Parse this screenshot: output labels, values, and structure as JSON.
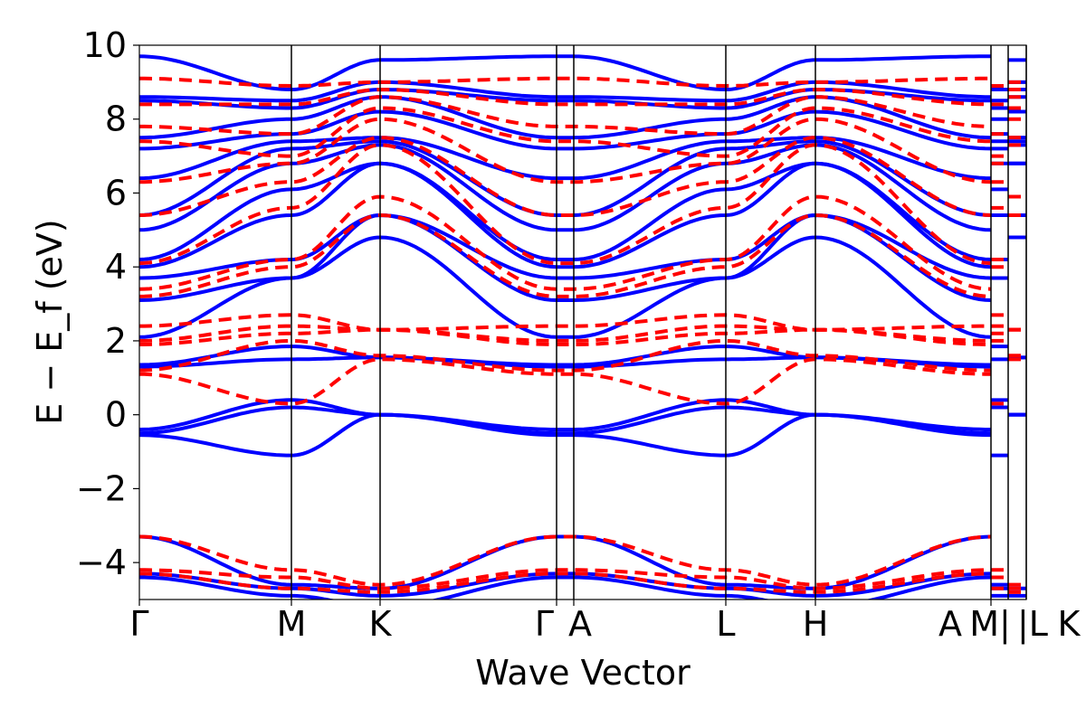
{
  "chart_data": {
    "type": "line",
    "title": "",
    "xlabel": "Wave Vector",
    "ylabel": "E − E_f (eV)",
    "ylabel_main": "E − E",
    "ylabel_sub": "f",
    "ylabel_unit": " (eV)",
    "ylim": [
      -5,
      10
    ],
    "yticks": [
      10,
      8,
      6,
      4,
      2,
      0,
      -2,
      -4
    ],
    "ytick_labels": [
      "10",
      "8",
      "6",
      "4",
      "2",
      "0",
      "−2",
      "−4"
    ],
    "xlim": [
      0,
      4.9
    ],
    "kpoints": [
      {
        "label": "Γ",
        "x": 0
      },
      {
        "label": "M",
        "x": 0.84
      },
      {
        "label": "K",
        "x": 1.33
      },
      {
        "label": "Γ",
        "x": 2.305
      },
      {
        "label": "A",
        "x": 2.4
      },
      {
        "label": "L",
        "x": 3.24
      },
      {
        "label": "H",
        "x": 3.735
      },
      {
        "label": "A",
        "x": 4.705
      },
      {
        "label": "M|",
        "x": 4.78
      },
      {
        "label": "|L",
        "x": 4.84
      },
      {
        "label": "K",
        "x": 4.93
      }
    ],
    "divider_x": [
      0.84,
      1.33,
      2.305,
      2.4,
      3.24,
      3.735,
      4.705,
      4.8,
      4.9
    ],
    "band_values_at": [
      "Γ",
      "M",
      "K"
    ],
    "grid": false,
    "legend": "none",
    "series": [
      {
        "style": "solid",
        "color": "#0000ff",
        "bands": [
          [
            -0.55,
            -1.1,
            0.0
          ],
          [
            -0.5,
            0.2,
            0.0
          ],
          [
            -0.4,
            0.4,
            0.0
          ],
          [
            1.3,
            1.5,
            1.55
          ],
          [
            1.35,
            1.85,
            1.55
          ],
          [
            2.1,
            3.7,
            4.8
          ],
          [
            3.1,
            3.7,
            5.4
          ],
          [
            3.7,
            4.2,
            5.4
          ],
          [
            4.0,
            5.4,
            6.8
          ],
          [
            4.2,
            6.1,
            6.8
          ],
          [
            5.0,
            6.8,
            7.3
          ],
          [
            5.4,
            7.2,
            7.4
          ],
          [
            6.4,
            7.4,
            7.5
          ],
          [
            7.2,
            7.6,
            8.2
          ],
          [
            7.5,
            8.0,
            8.6
          ],
          [
            8.5,
            8.3,
            8.8
          ],
          [
            8.6,
            8.5,
            9.0
          ],
          [
            9.7,
            8.8,
            9.6
          ],
          [
            -3.3,
            -4.6,
            -4.7
          ],
          [
            -4.3,
            -4.7,
            -4.9
          ],
          [
            -4.4,
            -4.9,
            -5.2
          ]
        ]
      },
      {
        "style": "dashed",
        "color": "#ff0000",
        "bands": [
          [
            1.1,
            0.3,
            1.5
          ],
          [
            1.2,
            2.0,
            1.6
          ],
          [
            1.9,
            2.2,
            2.3
          ],
          [
            2.0,
            2.4,
            2.3
          ],
          [
            2.4,
            2.7,
            2.3
          ],
          [
            3.2,
            4.0,
            5.4
          ],
          [
            3.4,
            4.2,
            5.9
          ],
          [
            4.1,
            5.6,
            7.3
          ],
          [
            5.4,
            6.3,
            7.5
          ],
          [
            6.3,
            6.8,
            8.0
          ],
          [
            7.4,
            7.0,
            8.3
          ],
          [
            7.8,
            7.6,
            8.6
          ],
          [
            8.4,
            8.4,
            8.8
          ],
          [
            9.1,
            8.9,
            9.0
          ],
          [
            -3.3,
            -4.2,
            -4.6
          ],
          [
            -4.2,
            -4.4,
            -4.7
          ],
          [
            -4.3,
            -4.7,
            -4.8
          ]
        ]
      }
    ]
  }
}
